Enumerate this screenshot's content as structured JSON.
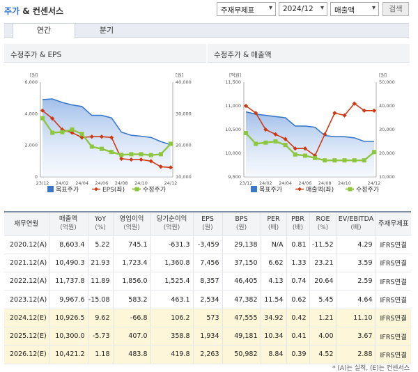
{
  "header": {
    "title_main": "주가",
    "title_amp": " & ",
    "title_sub": "컨센서스",
    "select_report": "주재무제표",
    "select_period": "2024/12",
    "select_metric": "매출액",
    "search_label": "검색"
  },
  "tabs": [
    {
      "label": "연간",
      "active": true
    },
    {
      "label": "분기",
      "active": false
    }
  ],
  "charts": [
    {
      "title": "수정주가 & EPS",
      "left_unit": "[원]",
      "right_unit": "[원]",
      "left_ticks": [
        "6,000",
        "4,000",
        "2,000",
        "0"
      ],
      "right_ticks": [
        "40,000",
        "30,000",
        "20,000",
        "10,000"
      ],
      "left_range": [
        0,
        6000
      ],
      "right_range": [
        10000,
        40000
      ],
      "x_labels": [
        "23/12",
        "24/02",
        "24/04",
        "24/06",
        "24/08",
        "24/10",
        "24/12"
      ],
      "legend": [
        "목표주가",
        "EPS(좌)",
        "수정주가"
      ],
      "colors": {
        "target": "#3a78c9",
        "eps": "#cc3a14",
        "price": "#8ec63f"
      },
      "target_price": [
        34500,
        34700,
        33600,
        32800,
        32300,
        29500,
        29500,
        28700,
        24200,
        23200,
        22900,
        22500,
        21200,
        20200
      ],
      "eps": [
        4200,
        3700,
        3000,
        2800,
        2500,
        2550,
        2550,
        2500,
        1150,
        1100,
        1100,
        1000,
        650,
        600
      ],
      "price": [
        28600,
        24000,
        24200,
        25000,
        23600,
        19600,
        18900,
        17900,
        17000,
        17200,
        17200,
        16900,
        17200,
        20500
      ]
    },
    {
      "title": "수정주가 & 매출액",
      "left_unit": "[억원]",
      "right_unit": "[원]",
      "left_ticks": [
        "11,500",
        "11,000",
        "10,500",
        "10,000",
        "9,500"
      ],
      "right_ticks": [
        "50,000",
        "40,000",
        "30,000",
        "20,000",
        "10,000"
      ],
      "left_range": [
        9500,
        11500
      ],
      "right_range": [
        10000,
        50000
      ],
      "x_labels": [
        "23/12",
        "24/02",
        "24/04",
        "24/06",
        "24/08",
        "24/10",
        "24/12"
      ],
      "legend": [
        "목표주가",
        "매출액(좌)",
        "수정주가"
      ],
      "colors": {
        "target": "#3a78c9",
        "sales": "#cc3a14",
        "price": "#8ec63f"
      },
      "target_price": [
        37500,
        36500,
        36000,
        35500,
        35000,
        31500,
        31500,
        31000,
        27500,
        27000,
        27000,
        26500,
        25000,
        25000
      ],
      "sales": [
        11000,
        10850,
        10500,
        10400,
        10300,
        10100,
        10100,
        9950,
        10400,
        10850,
        10800,
        11050,
        10900,
        10900
      ],
      "price": [
        28500,
        24000,
        24500,
        25000,
        23500,
        19500,
        19000,
        18000,
        17000,
        17000,
        17000,
        17000,
        17000,
        20500
      ]
    }
  ],
  "table": {
    "columns": [
      {
        "label": "재무연월",
        "unit": ""
      },
      {
        "label": "매출액",
        "unit": "(억원)"
      },
      {
        "label": "YoY",
        "unit": "(%)"
      },
      {
        "label": "영업이익",
        "unit": "(억원)"
      },
      {
        "label": "당기순이익",
        "unit": "(억원)"
      },
      {
        "label": "EPS",
        "unit": "(원)"
      },
      {
        "label": "BPS",
        "unit": "(원)"
      },
      {
        "label": "PER",
        "unit": "(배)"
      },
      {
        "label": "PBR",
        "unit": "(배)"
      },
      {
        "label": "ROE",
        "unit": "(%)"
      },
      {
        "label": "EV/EBITDA",
        "unit": "(배)"
      },
      {
        "label": "주재무제표",
        "unit": ""
      }
    ],
    "rows": [
      {
        "estimate": false,
        "cells": [
          "2020.12(A)",
          "8,603.4",
          "5.22",
          "745.1",
          "-631.3",
          "-3,459",
          "29,138",
          "N/A",
          "0.81",
          "-11.52",
          "4.29",
          "IFRS연결"
        ]
      },
      {
        "estimate": false,
        "cells": [
          "2021.12(A)",
          "10,490.3",
          "21.93",
          "1,723.4",
          "1,360.8",
          "7,456",
          "37,150",
          "6.62",
          "1.33",
          "23.21",
          "3.59",
          "IFRS연결"
        ]
      },
      {
        "estimate": false,
        "cells": [
          "2022.12(A)",
          "11,737.8",
          "11.89",
          "1,856.0",
          "1,525.4",
          "8,357",
          "46,405",
          "4.13",
          "0.74",
          "20.64",
          "2.59",
          "IFRS연결"
        ]
      },
      {
        "estimate": false,
        "cells": [
          "2023.12(A)",
          "9,967.6",
          "-15.08",
          "583.2",
          "463.1",
          "2,534",
          "47,382",
          "11.54",
          "0.62",
          "5.45",
          "4.64",
          "IFRS연결"
        ]
      },
      {
        "estimate": true,
        "cells": [
          "2024.12(E)",
          "10,926.5",
          "9.62",
          "-66.8",
          "106.2",
          "573",
          "47,555",
          "34.92",
          "0.42",
          "1.21",
          "11.10",
          "IFRS연결"
        ]
      },
      {
        "estimate": true,
        "cells": [
          "2025.12(E)",
          "10,300.0",
          "-5.73",
          "407.0",
          "358.8",
          "1,934",
          "49,181",
          "10.34",
          "0.41",
          "4.00",
          "3.67",
          "IFRS연결"
        ]
      },
      {
        "estimate": true,
        "cells": [
          "2026.12(E)",
          "10,421.2",
          "1.18",
          "483.8",
          "419.8",
          "2,263",
          "50,982",
          "8.84",
          "0.39",
          "4.52",
          "2.88",
          "IFRS연결"
        ]
      }
    ]
  },
  "footnote": "* (A)는 실적, (E)는 컨센서스"
}
